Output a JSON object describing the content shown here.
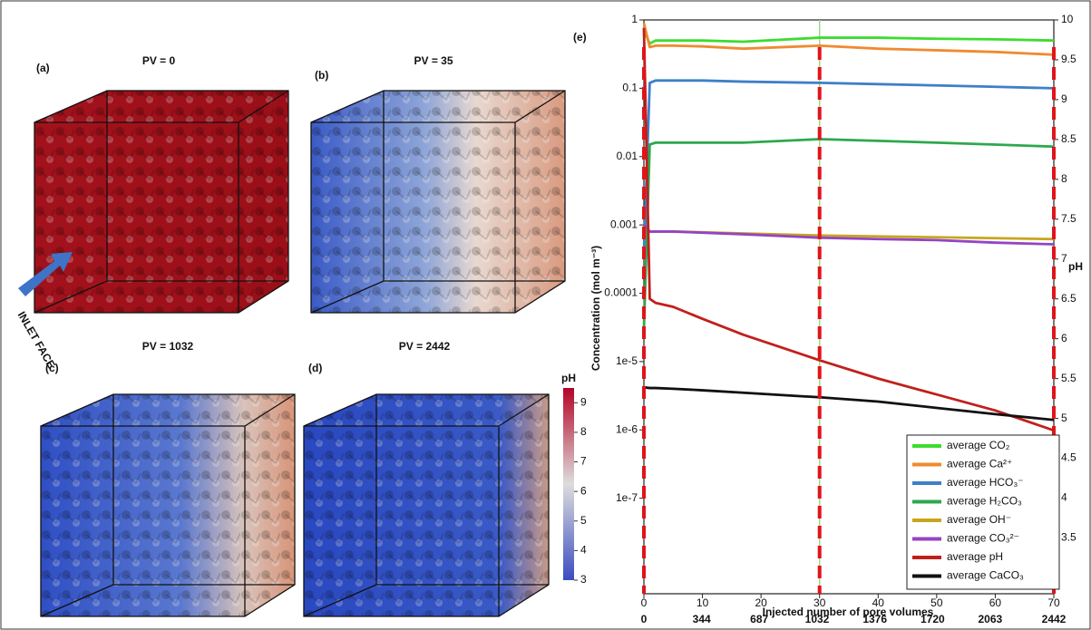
{
  "panels": [
    {
      "tag": "(a)",
      "title": "PV = 0"
    },
    {
      "tag": "(b)",
      "title": "PV = 35"
    },
    {
      "tag": "(c)",
      "title": "PV = 1032"
    },
    {
      "tag": "(d)",
      "title": "PV = 2442"
    }
  ],
  "annotation": "INLET FACE",
  "colorbar": {
    "label": "pH",
    "lim": [
      3,
      9.5
    ],
    "ticks": [
      3,
      4,
      5,
      6,
      7,
      8,
      9
    ]
  },
  "chart_data": {
    "type": "line",
    "panel_tag": "(e)",
    "x_label": "Injected number of pore volumes",
    "y_label": "Concentration (mol m⁻³)",
    "y2_label": "pH",
    "log_y": true,
    "xlim": [
      0,
      70
    ],
    "xticks": [
      0,
      10,
      20,
      30,
      40,
      50,
      60,
      70
    ],
    "x2lim": [
      0,
      2442
    ],
    "x2ticks": [
      0,
      344,
      687,
      1032,
      1376,
      1720,
      2063,
      2442
    ],
    "ylim": [
      4e-09,
      1
    ],
    "yticks": [
      1,
      0.1,
      0.01,
      0.001,
      0.0001,
      {
        "value": 1e-05,
        "label": "1e-5"
      },
      {
        "value": 1e-06,
        "label": "1e-6"
      },
      {
        "value": 1e-07,
        "label": "1e-7"
      }
    ],
    "y2lim": [
      2.8,
      10
    ],
    "y2ticks": [
      3.5,
      4,
      4.5,
      5,
      5.5,
      6,
      6.5,
      7,
      7.5,
      8,
      8.5,
      9,
      9.5,
      10
    ],
    "x": [
      0,
      1,
      2,
      5,
      10,
      17,
      30,
      40,
      50,
      60,
      70
    ],
    "series": [
      {
        "name": "average CO₂",
        "color": "#3ddc2f",
        "values": [
          0.7,
          0.45,
          0.5,
          0.5,
          0.5,
          0.48,
          0.55,
          0.55,
          0.53,
          0.52,
          0.5
        ]
      },
      {
        "name": "average Ca²⁺",
        "color": "#f08a30",
        "values": [
          0.9,
          0.4,
          0.42,
          0.42,
          0.41,
          0.38,
          0.42,
          0.38,
          0.36,
          0.34,
          0.31
        ]
      },
      {
        "name": "average HCO₃⁻",
        "color": "#3f7fc8",
        "values": [
          0.0004,
          0.12,
          0.13,
          0.13,
          0.13,
          0.125,
          0.12,
          0.115,
          0.11,
          0.105,
          0.1
        ]
      },
      {
        "name": "average H₂CO₃",
        "color": "#2ea84e",
        "values": [
          3e-05,
          0.015,
          0.016,
          0.016,
          0.016,
          0.016,
          0.018,
          0.017,
          0.016,
          0.015,
          0.014
        ]
      },
      {
        "name": "average OH⁻",
        "color": "#c9a51c",
        "values": [
          0.001,
          0.0008,
          0.0008,
          0.0008,
          0.00078,
          0.00075,
          0.0007,
          0.00068,
          0.00066,
          0.00064,
          0.00062
        ]
      },
      {
        "name": "average CO₃²⁻",
        "color": "#9444c4",
        "values": [
          0.001,
          0.0008,
          0.0008,
          0.0008,
          0.00077,
          0.00073,
          0.00065,
          0.00062,
          0.0006,
          0.00055,
          0.00052
        ]
      },
      {
        "name": "average pH",
        "color": "#c0201c",
        "axis": "y2",
        "values": [
          9.9,
          6.5,
          6.45,
          6.4,
          6.25,
          6.05,
          5.73,
          5.5,
          5.3,
          5.1,
          4.85
        ]
      },
      {
        "name": "average CaCO₃",
        "color": "#111111",
        "values": [
          4.2e-06,
          4.1e-06,
          4.1e-06,
          4e-06,
          3.8e-06,
          3.5e-06,
          3e-06,
          2.6e-06,
          2.1e-06,
          1.7e-06,
          1.4e-06
        ]
      }
    ]
  }
}
